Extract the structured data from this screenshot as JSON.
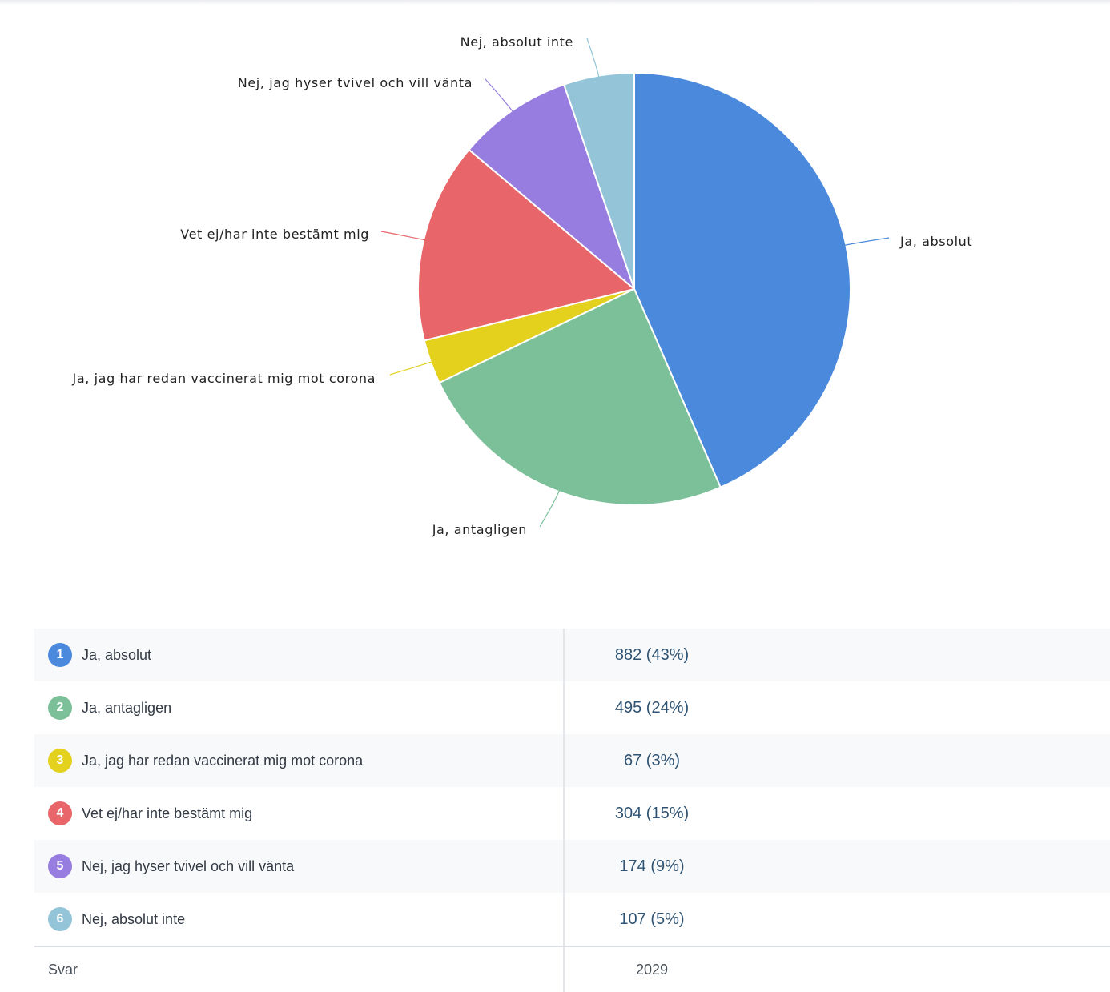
{
  "chart_data": {
    "type": "pie",
    "categories": [
      "Ja, absolut",
      "Ja, antagligen",
      "Ja, jag har redan vaccinerat mig mot corona",
      "Vet ej/har inte bestämt mig",
      "Nej, jag hyser tvivel och vill vänta",
      "Nej, absolut inte"
    ],
    "values": [
      882,
      495,
      67,
      304,
      174,
      107
    ],
    "colors": [
      "#4a89dc",
      "#7cc09a",
      "#e3d11e",
      "#e86569",
      "#977ddf",
      "#93c4d8"
    ],
    "total": 2029
  },
  "results": {
    "rows": [
      {
        "index": "1",
        "label": "Ja, absolut",
        "value": "882 (43%)",
        "color": "#4a89dc"
      },
      {
        "index": "2",
        "label": "Ja, antagligen",
        "value": "495 (24%)",
        "color": "#7cc09a"
      },
      {
        "index": "3",
        "label": "Ja, jag har redan vaccinerat mig mot corona",
        "value": "67 (3%)",
        "color": "#e3d11e"
      },
      {
        "index": "4",
        "label": "Vet ej/har inte bestämt mig",
        "value": "304 (15%)",
        "color": "#e86569"
      },
      {
        "index": "5",
        "label": "Nej, jag hyser tvivel och vill vänta",
        "value": "174 (9%)",
        "color": "#977ddf"
      },
      {
        "index": "6",
        "label": "Nej, absolut inte",
        "value": "107 (5%)",
        "color": "#93c4d8"
      }
    ],
    "total_label": "Svar",
    "total_value": "2029"
  }
}
